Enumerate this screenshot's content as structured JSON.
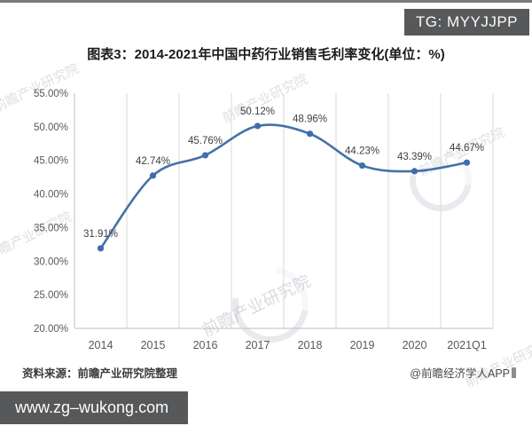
{
  "badge": {
    "label": "TG: MYYJJPP"
  },
  "title": "图表3：2014-2021年中国中药行业销售毛利率变化(单位：%)",
  "chart_data": {
    "type": "line",
    "title": "图表3：2014-2021年中国中药行业销售毛利率变化(单位：%)",
    "categories": [
      "2014",
      "2015",
      "2016",
      "2017",
      "2018",
      "2019",
      "2020",
      "2021Q1"
    ],
    "values": [
      31.91,
      42.74,
      45.76,
      50.12,
      48.96,
      44.23,
      43.39,
      44.67
    ],
    "point_labels": [
      "31.91%",
      "42.74%",
      "45.76%",
      "50.12%",
      "48.96%",
      "44.23%",
      "43.39%",
      "44.67%"
    ],
    "ylabel": "",
    "xlabel": "",
    "ylim": [
      20,
      55
    ],
    "ytick_labels": [
      "20.00%",
      "25.00%",
      "30.00%",
      "35.00%",
      "40.00%",
      "45.00%",
      "50.00%",
      "55.00%"
    ],
    "grid": "vertical-only",
    "legend": "none",
    "smooth": true
  },
  "colors": {
    "line": "#4472a8",
    "marker": "#3f6dad",
    "grid": "#d9d9d9",
    "axis": "#bfbfbf",
    "tick_text": "#595959",
    "point_label_text": "#3f3f3f",
    "badge_bg": "#57585a",
    "url_bar_bg": "#57585a"
  },
  "footer": {
    "source": "资料来源：前瞻产业研究院整理",
    "credit": "@前瞻经济学人APP"
  },
  "url_bar": {
    "text": "www.zg–wukong.com"
  },
  "watermark": {
    "text": "前瞻产业研究院"
  }
}
